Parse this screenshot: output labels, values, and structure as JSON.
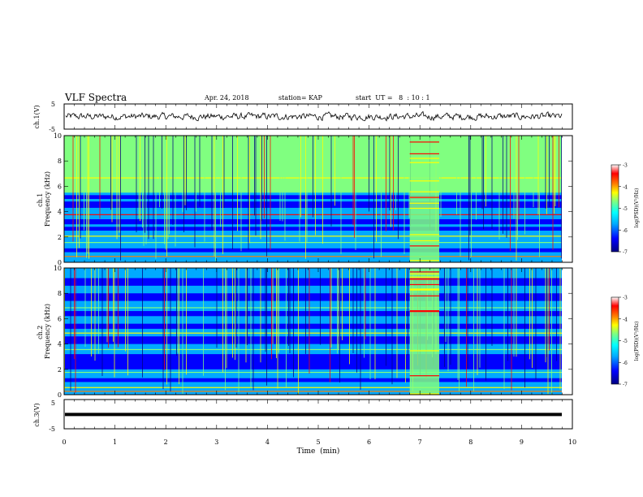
{
  "header": {
    "title": "VLF Spectra",
    "date": "Apr. 24, 2018",
    "station": "station= KAP",
    "start_ut": "start  UT =   8  : 10 : 1"
  },
  "chart_data": [
    {
      "id": "ch1-waveform",
      "type": "line",
      "ylabel": "ch.1(V)",
      "ylim": [
        -5,
        5
      ],
      "y_ticks": [
        "5",
        "-5"
      ],
      "xlim": [
        0,
        10
      ],
      "color": "#000000"
    },
    {
      "id": "ch1-spectrogram",
      "type": "heatmap",
      "ylabel": "ch.1\nFrequency (kHz)",
      "ylim": [
        0,
        10
      ],
      "y_ticks": [
        "0",
        "2",
        "4",
        "6",
        "8",
        "10"
      ],
      "xlim": [
        0,
        10
      ],
      "colorbar": {
        "label": "log(PSD)(V²/Hz)",
        "range": [
          -7,
          -3
        ],
        "ticks": [
          "-3",
          "-4",
          "-5",
          "-6",
          "-7"
        ]
      }
    },
    {
      "id": "ch2-spectrogram",
      "type": "heatmap",
      "ylabel": "ch.2\nFrequency (kHz)",
      "ylim": [
        0,
        10
      ],
      "y_ticks": [
        "0",
        "2",
        "4",
        "6",
        "8",
        "10"
      ],
      "xlim": [
        0,
        10
      ],
      "colorbar": {
        "label": "log(PSD)(V²/Hz)",
        "range": [
          -7,
          -3
        ],
        "ticks": [
          "-3",
          "-4",
          "-5",
          "-6",
          "-7"
        ]
      }
    },
    {
      "id": "ch3-waveform",
      "type": "line",
      "ylabel": "ch.3(V)",
      "ylim": [
        -5,
        5
      ],
      "y_ticks": [
        "5",
        "-5"
      ],
      "xlim": [
        0,
        10
      ],
      "x_ticks": [
        "0",
        "1",
        "2",
        "3",
        "4",
        "5",
        "6",
        "7",
        "8",
        "9",
        "10"
      ],
      "xlabel": "Time  (min)",
      "color": "#000000"
    }
  ],
  "colors": {
    "colormap": [
      "#000080",
      "#0000ff",
      "#00aaff",
      "#00ffff",
      "#80ff80",
      "#ffff00",
      "#ff8000",
      "#ff0000",
      "#ffffff"
    ]
  }
}
